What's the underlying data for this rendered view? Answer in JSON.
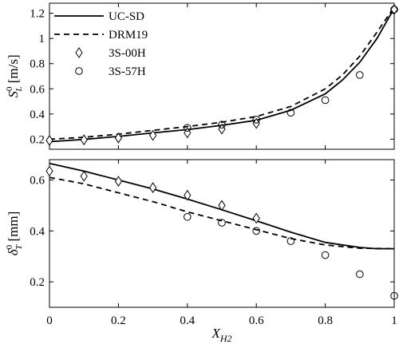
{
  "chart_data": [
    {
      "type": "line",
      "panel": "top",
      "ylabel_parts": {
        "main": "S",
        "sup": "0",
        "sub": "L",
        "unit": " [m/s]"
      },
      "xlim": [
        0,
        1
      ],
      "ylim": [
        0.12,
        1.28
      ],
      "xticks": [
        0,
        0.2,
        0.4,
        0.6,
        0.8,
        1
      ],
      "yticks": [
        0.2,
        0.4,
        0.6,
        0.8,
        1,
        1.2
      ],
      "ytick_labels": [
        "0.2",
        "0.4",
        "0.6",
        "0.8",
        "1",
        "1.2"
      ],
      "legend_position": "top-left",
      "series": [
        {
          "name": "UC-SD",
          "style": "solid",
          "x": [
            0,
            0.1,
            0.2,
            0.3,
            0.4,
            0.5,
            0.6,
            0.7,
            0.8,
            0.85,
            0.9,
            0.95,
            1.0
          ],
          "y": [
            0.18,
            0.198,
            0.222,
            0.25,
            0.276,
            0.31,
            0.35,
            0.43,
            0.56,
            0.67,
            0.81,
            1.0,
            1.24
          ]
        },
        {
          "name": "DRM19",
          "style": "dashed",
          "x": [
            0,
            0.1,
            0.2,
            0.3,
            0.4,
            0.5,
            0.6,
            0.7,
            0.8,
            0.85,
            0.9,
            0.95,
            1.0
          ],
          "y": [
            0.2,
            0.215,
            0.24,
            0.27,
            0.3,
            0.335,
            0.38,
            0.46,
            0.6,
            0.71,
            0.86,
            1.05,
            1.25
          ]
        },
        {
          "name": "3S-00H",
          "marker": "diamond",
          "x": [
            0,
            0.1,
            0.2,
            0.3,
            0.4,
            0.5,
            0.6,
            1.0
          ],
          "y": [
            0.19,
            0.195,
            0.21,
            0.23,
            0.25,
            0.28,
            0.325,
            1.23
          ]
        },
        {
          "name": "3S-57H",
          "marker": "circle",
          "x": [
            0.4,
            0.5,
            0.6,
            0.7,
            0.8,
            0.9,
            1.0
          ],
          "y": [
            0.29,
            0.315,
            0.355,
            0.41,
            0.51,
            0.71,
            1.23
          ]
        }
      ]
    },
    {
      "type": "line",
      "panel": "bottom",
      "xlabel_parts": {
        "main": "X",
        "sub": "H2"
      },
      "ylabel_parts": {
        "main": "δ",
        "sup": "0",
        "sub": "T",
        "unit": " [mm]"
      },
      "xlim": [
        0,
        1
      ],
      "ylim": [
        0.1,
        0.68
      ],
      "xticks": [
        0,
        0.2,
        0.4,
        0.6,
        0.8,
        1
      ],
      "xtick_labels": [
        "0",
        "0.2",
        "0.4",
        "0.6",
        "0.8",
        "1"
      ],
      "yticks": [
        0.2,
        0.4,
        0.6
      ],
      "ytick_labels": [
        "0.2",
        "0.4",
        "0.6"
      ],
      "series": [
        {
          "name": "UC-SD",
          "style": "solid",
          "x": [
            0,
            0.1,
            0.2,
            0.3,
            0.4,
            0.5,
            0.6,
            0.7,
            0.8,
            0.9,
            0.95,
            1.0
          ],
          "y": [
            0.665,
            0.635,
            0.6,
            0.565,
            0.525,
            0.483,
            0.44,
            0.395,
            0.355,
            0.335,
            0.33,
            0.33
          ]
        },
        {
          "name": "DRM19",
          "style": "dashed",
          "x": [
            0,
            0.1,
            0.2,
            0.3,
            0.4,
            0.5,
            0.6,
            0.7,
            0.8,
            0.9,
            1.0
          ],
          "y": [
            0.61,
            0.585,
            0.55,
            0.515,
            0.475,
            0.44,
            0.405,
            0.37,
            0.345,
            0.332,
            0.33
          ]
        },
        {
          "name": "3S-00H",
          "marker": "diamond",
          "x": [
            0,
            0.1,
            0.2,
            0.3,
            0.4,
            0.5,
            0.6
          ],
          "y": [
            0.635,
            0.615,
            0.595,
            0.57,
            0.54,
            0.5,
            0.45
          ]
        },
        {
          "name": "3S-57H",
          "marker": "circle",
          "x": [
            0.4,
            0.5,
            0.6,
            0.7,
            0.8,
            0.9,
            1.0
          ],
          "y": [
            0.455,
            0.432,
            0.4,
            0.36,
            0.305,
            0.23,
            0.145
          ]
        }
      ]
    }
  ]
}
